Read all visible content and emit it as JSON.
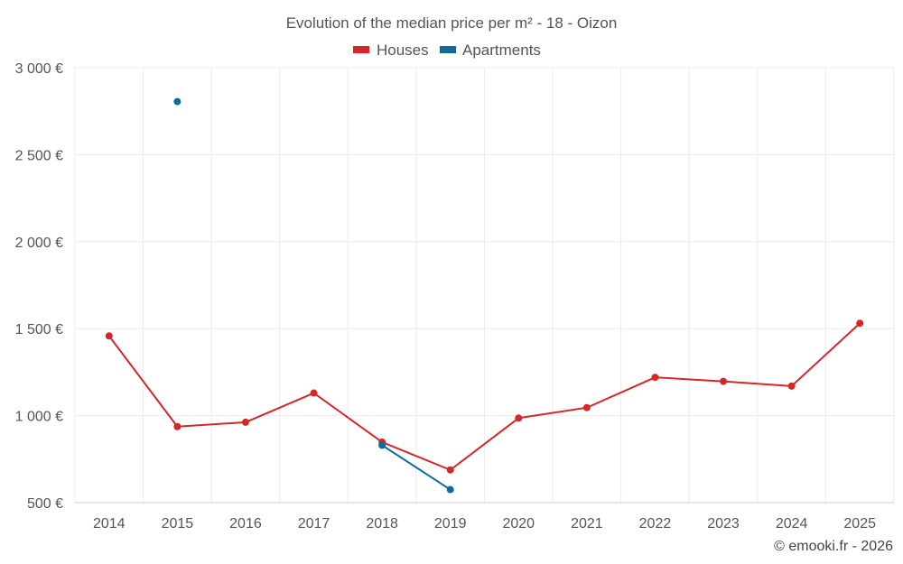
{
  "chart_data": {
    "type": "line",
    "title": "Evolution of the median price per m² - 18 - Oizon",
    "categories": [
      "2014",
      "2015",
      "2016",
      "2017",
      "2018",
      "2019",
      "2020",
      "2021",
      "2022",
      "2023",
      "2024",
      "2025"
    ],
    "ylim": [
      500,
      3000
    ],
    "y_ticks": [
      500,
      1000,
      1500,
      2000,
      2500,
      3000
    ],
    "y_tick_labels": [
      "500 €",
      "1 000 €",
      "1 500 €",
      "2 000 €",
      "2 500 €",
      "3 000 €"
    ],
    "grid": true,
    "legend_position": "top-center",
    "series": [
      {
        "name": "Houses",
        "color": "#d62728",
        "values": [
          1458,
          937,
          962,
          1130,
          848,
          688,
          986,
          1046,
          1220,
          1197,
          1170,
          1531
        ]
      },
      {
        "name": "Apartments",
        "color": "#0f6a9c",
        "values": [
          null,
          2805,
          null,
          null,
          830,
          575,
          null,
          null,
          null,
          null,
          null,
          null
        ]
      }
    ]
  },
  "credit": "© emooki.fr - 2026"
}
